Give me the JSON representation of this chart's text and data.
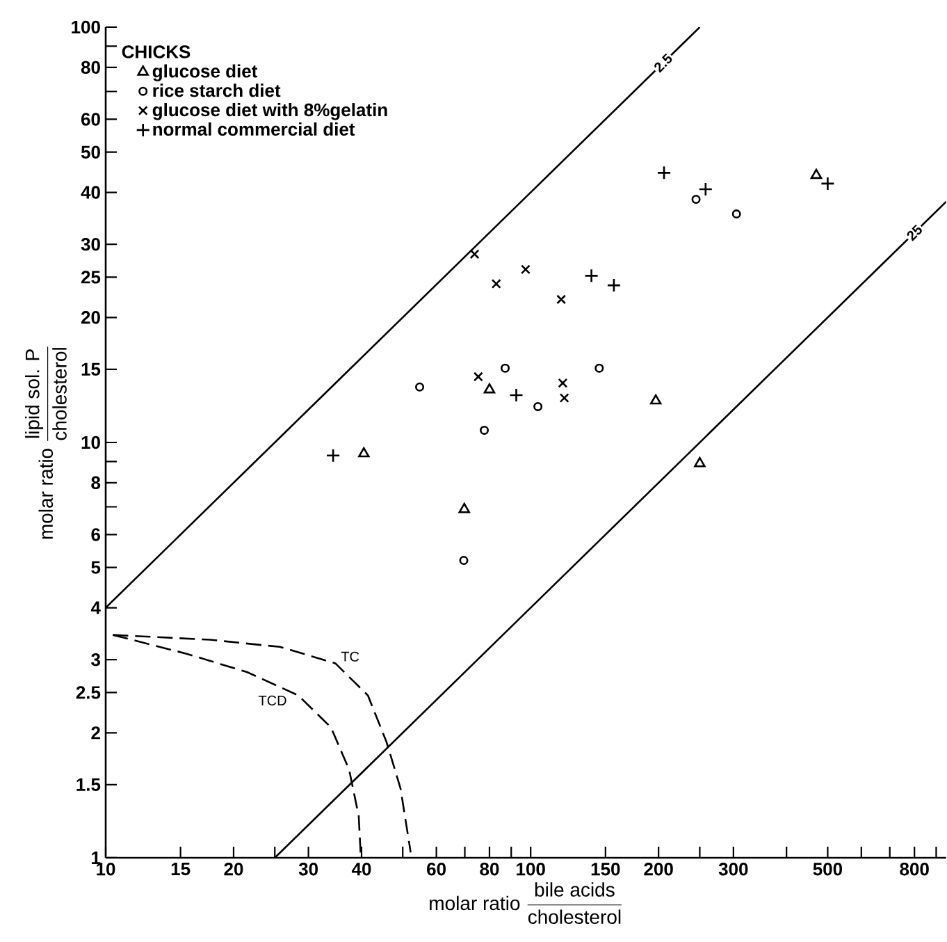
{
  "chart_data": {
    "type": "scatter",
    "xlabel": "\\text{molar ratio }\\dfrac{\\text{bile acids}}{\\text{cholesterol}}",
    "ylabel": "\\text{molar ratio }\\dfrac{\\text{lipid sol. P}}{\\text{cholesterol}}",
    "legend_title": "CHICKS",
    "legend": "top left",
    "log": "xy",
    "grid": false,
    "xlim": [
      10,
      950
    ],
    "ylim": [
      1,
      100
    ],
    "xticks": [
      10,
      15,
      20,
      {
        "value": 25,
        "label": null
      },
      30,
      40,
      {
        "value": 50,
        "label": null
      },
      60,
      {
        "value": 70,
        "label": null
      },
      80,
      {
        "value": 90,
        "label": null
      },
      100,
      150,
      200,
      {
        "value": 250,
        "label": null
      },
      300,
      {
        "value": 400,
        "label": null
      },
      500,
      {
        "value": 600,
        "label": null
      },
      {
        "value": 700,
        "label": null
      },
      800,
      {
        "value": 900,
        "label": null
      }
    ],
    "yticks": [
      1,
      1.5,
      2,
      2.5,
      3,
      4,
      5,
      6,
      {
        "value": 7,
        "label": null
      },
      8,
      {
        "value": 9,
        "label": null
      },
      10,
      15,
      20,
      25,
      30,
      40,
      50,
      60,
      {
        "value": 70,
        "label": null
      },
      80,
      {
        "value": 90,
        "label": null
      },
      100
    ],
    "series": [
      {
        "name": "glucose diet",
        "marker": "triangle",
        "color": "#000000",
        "x": [
          40.5,
          69.8,
          80,
          197,
          250,
          470
        ],
        "values": [
          9.4,
          6.9,
          13.4,
          12.6,
          8.9,
          44
        ]
      },
      {
        "name": "rice starch diet",
        "marker": "circle",
        "color": "#000000",
        "x": [
          54.8,
          69.6,
          77.8,
          87.1,
          104,
          145,
          245,
          305
        ],
        "values": [
          13.6,
          5.2,
          10.7,
          15.1,
          12.2,
          15.1,
          38.5,
          35.5
        ]
      },
      {
        "name": "glucose diet with 8%gelatin",
        "marker": "cross",
        "color": "#000000",
        "x": [
          73.8,
          75.3,
          83,
          97.3,
          118,
          119,
          120
        ],
        "values": [
          28.4,
          14.4,
          24.1,
          26.1,
          22.1,
          13.9,
          12.8
        ]
      },
      {
        "name": "normal commercial diet",
        "marker": "plus",
        "color": "#000000",
        "x": [
          34.3,
          92.5,
          139,
          157,
          206,
          258,
          500
        ],
        "values": [
          9.3,
          13,
          25.2,
          23.9,
          44.6,
          40.7,
          42
        ]
      },
      {
        "type": "line",
        "line_style": "solid",
        "color": "#000000",
        "x": [
          10,
          250
        ],
        "values": [
          4,
          100
        ]
      },
      {
        "type": "line",
        "line_style": "solid",
        "color": "#000000",
        "x": [
          25,
          950
        ],
        "values": [
          1,
          38
        ]
      },
      {
        "name": "TC",
        "type": "line",
        "line_style": "dashed",
        "color": "#000000",
        "x": [
          10.4,
          17.6,
          25.7,
          34.7,
          41.4,
          45.8,
          49.4,
          52.2
        ],
        "values": [
          3.44,
          3.35,
          3.22,
          2.94,
          2.46,
          1.9,
          1.47,
          1.03
        ]
      },
      {
        "name": "TCD",
        "type": "line",
        "line_style": "dashed",
        "color": "#000000",
        "x": [
          10.4,
          15.5,
          21.5,
          28.4,
          33.9,
          37.4,
          39.4,
          39.8
        ],
        "values": [
          3.44,
          3.1,
          2.8,
          2.46,
          2.06,
          1.63,
          1.26,
          1.03
        ]
      }
    ],
    "annotations": [
      {
        "text": "2.5",
        "x": 205,
        "y": 82
      },
      {
        "text": "25",
        "x": 800,
        "y": 32
      }
    ]
  }
}
